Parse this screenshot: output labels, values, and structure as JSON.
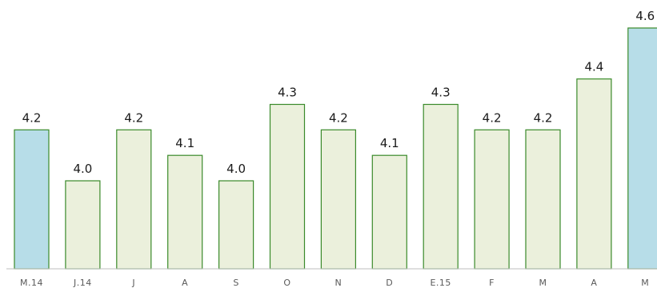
{
  "chart_data": {
    "type": "bar",
    "categories": [
      "M.14",
      "J.14",
      "J",
      "A",
      "S",
      "O",
      "N",
      "D",
      "E.15",
      "F",
      "M",
      "A",
      "M"
    ],
    "values": [
      4.2,
      4.0,
      4.2,
      4.1,
      4.0,
      4.3,
      4.2,
      4.1,
      4.3,
      4.2,
      4.2,
      4.4,
      4.6
    ],
    "data_labels": [
      "4.2",
      "4.0",
      "4.2",
      "4.1",
      "4.0",
      "4.3",
      "4.2",
      "4.1",
      "4.3",
      "4.2",
      "4.2",
      "4.4",
      "4.6"
    ],
    "highlighted": [
      true,
      false,
      false,
      false,
      false,
      false,
      false,
      false,
      false,
      false,
      false,
      false,
      true
    ],
    "grid": false,
    "legend": "none",
    "colors": {
      "bar_fill": "#ebf0dc",
      "bar_stroke": "#3a8a2a",
      "highlight_fill": "#b7dde8",
      "highlight_stroke": "#3a8a2a",
      "axis": "#bfbfbf",
      "text": "#1a1a1a",
      "tick_text": "#595959"
    }
  }
}
